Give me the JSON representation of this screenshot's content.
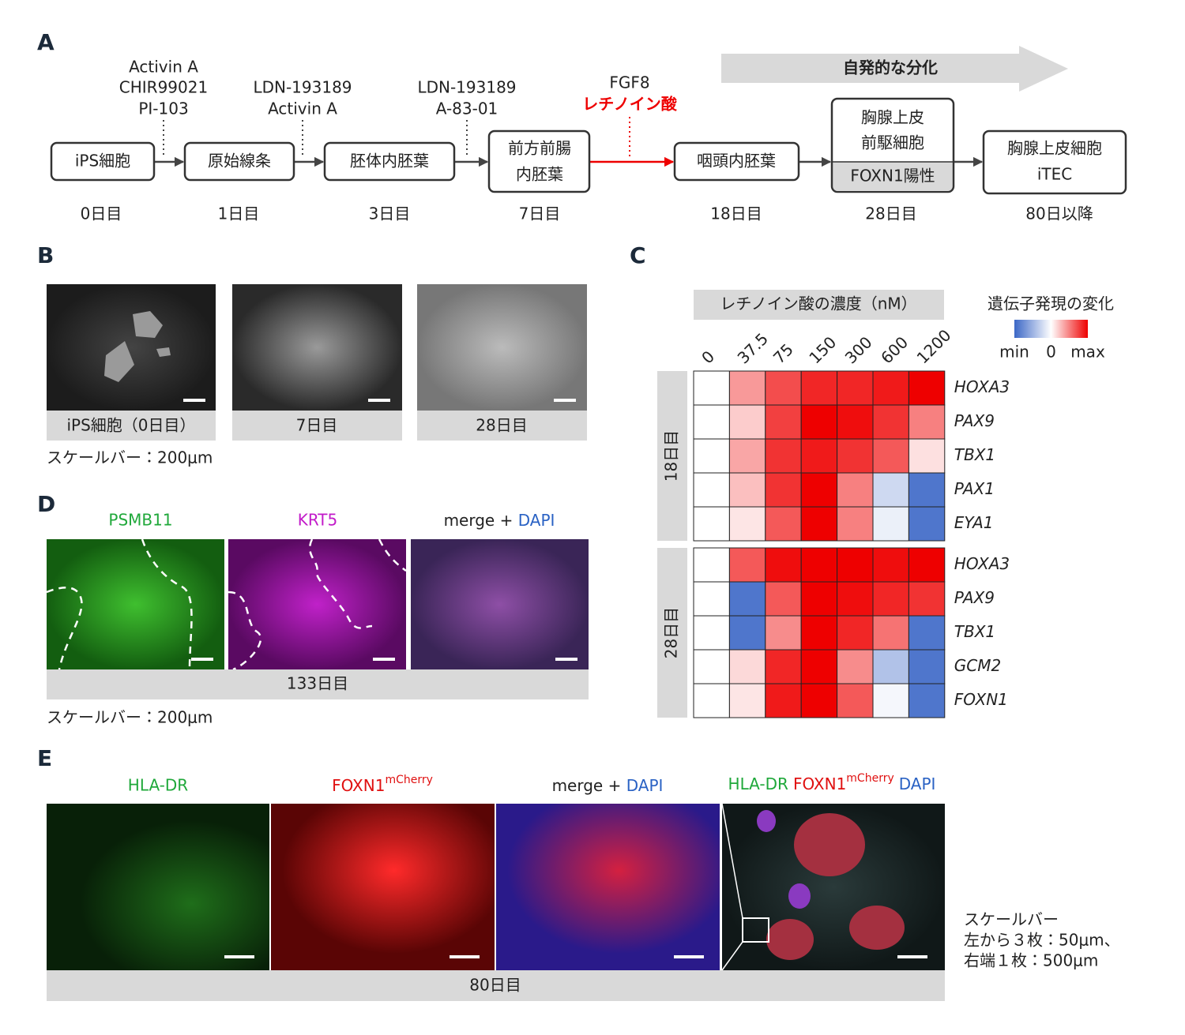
{
  "panel_a": {
    "label": "A",
    "arrow_label": "自発的な分化",
    "stages": [
      {
        "name": [
          "iPS細胞"
        ],
        "day": "0日目"
      },
      {
        "name": [
          "原始線条"
        ],
        "day": "1日目"
      },
      {
        "name": [
          "胚体内胚葉"
        ],
        "day": "3日目"
      },
      {
        "name": [
          "前方前腸",
          "内胚葉"
        ],
        "day": "7日目"
      },
      {
        "name": [
          "咽頭内胚葉"
        ],
        "day": "18日目"
      },
      {
        "name": [
          "胸腺上皮",
          "前駆細胞"
        ],
        "marker": "FOXN1陽性",
        "day": "28日目"
      },
      {
        "name": [
          "胸腺上皮細胞",
          "iTEC"
        ],
        "day": "80日以降"
      }
    ],
    "treatments": [
      [
        "Activin A",
        "CHIR99021",
        "PI-103"
      ],
      [
        "LDN-193189",
        "Activin A"
      ],
      [
        "LDN-193189",
        "A-83-01"
      ],
      [
        "FGF8",
        "レチノイン酸"
      ]
    ]
  },
  "panel_b": {
    "label": "B",
    "captions": [
      "iPS細胞（0日目）",
      "7日目",
      "28日目"
    ],
    "scale_note": "スケールバー：200μm"
  },
  "panel_d": {
    "label": "D",
    "headers": [
      "PSMB11",
      "KRT5"
    ],
    "merge": [
      "merge + ",
      "DAPI"
    ],
    "caption": "133日目",
    "scale_note": "スケールバー：200μm"
  },
  "panel_e": {
    "label": "E",
    "headers": [
      "HLA-DR",
      "FOXN1",
      "mCherry"
    ],
    "merge": [
      "merge + ",
      "DAPI"
    ],
    "overlay": [
      "HLA-DR",
      "FOXN1",
      "mCherry",
      "DAPI"
    ],
    "caption": "80日目",
    "scale_note": [
      "スケールバー",
      "左から３枚：50μm、",
      "右端１枚：500μm"
    ]
  },
  "chart_data": {
    "type": "heatmap",
    "label": "C",
    "title": "レチノイン酸の濃度（nM）",
    "legend_title": "遺伝子発現の変化",
    "categories": [
      "0",
      "37.5",
      "75",
      "150",
      "300",
      "600",
      "1200"
    ],
    "colorscale": [
      "#3b67c6",
      "#ffffff",
      "#ee0000"
    ],
    "zlim": [
      -1,
      1
    ],
    "zticks": [
      {
        "value": -1,
        "label": "min"
      },
      0,
      {
        "value": 1,
        "label": "max"
      }
    ],
    "groups": [
      {
        "name": "18日目",
        "rows": [
          "HOXA3",
          "PAX9",
          "TBX1",
          "PAX1",
          "EYA1"
        ],
        "values": [
          [
            0,
            0.4,
            0.7,
            0.85,
            0.85,
            0.9,
            1.0
          ],
          [
            0,
            0.2,
            0.75,
            1.0,
            0.95,
            0.8,
            0.5
          ],
          [
            0,
            0.35,
            0.8,
            0.9,
            0.8,
            0.65,
            0.12
          ],
          [
            0,
            0.25,
            0.8,
            1.0,
            0.5,
            -0.25,
            -0.9
          ],
          [
            0,
            0.1,
            0.65,
            1.0,
            0.5,
            -0.1,
            -0.9
          ]
        ]
      },
      {
        "name": "28日目",
        "rows": [
          "HOXA3",
          "PAX9",
          "TBX1",
          "GCM2",
          "FOXN1"
        ],
        "values": [
          [
            0,
            0.65,
            0.95,
            1.0,
            1.0,
            0.95,
            1.0
          ],
          [
            0,
            -0.9,
            0.65,
            1.0,
            0.95,
            0.85,
            0.8
          ],
          [
            0,
            -0.9,
            0.45,
            1.0,
            0.85,
            0.55,
            -0.9
          ],
          [
            0,
            0.15,
            0.85,
            1.0,
            0.45,
            -0.4,
            -0.9
          ],
          [
            0,
            0.1,
            0.9,
            1.0,
            0.65,
            -0.05,
            -0.9
          ]
        ]
      }
    ]
  }
}
